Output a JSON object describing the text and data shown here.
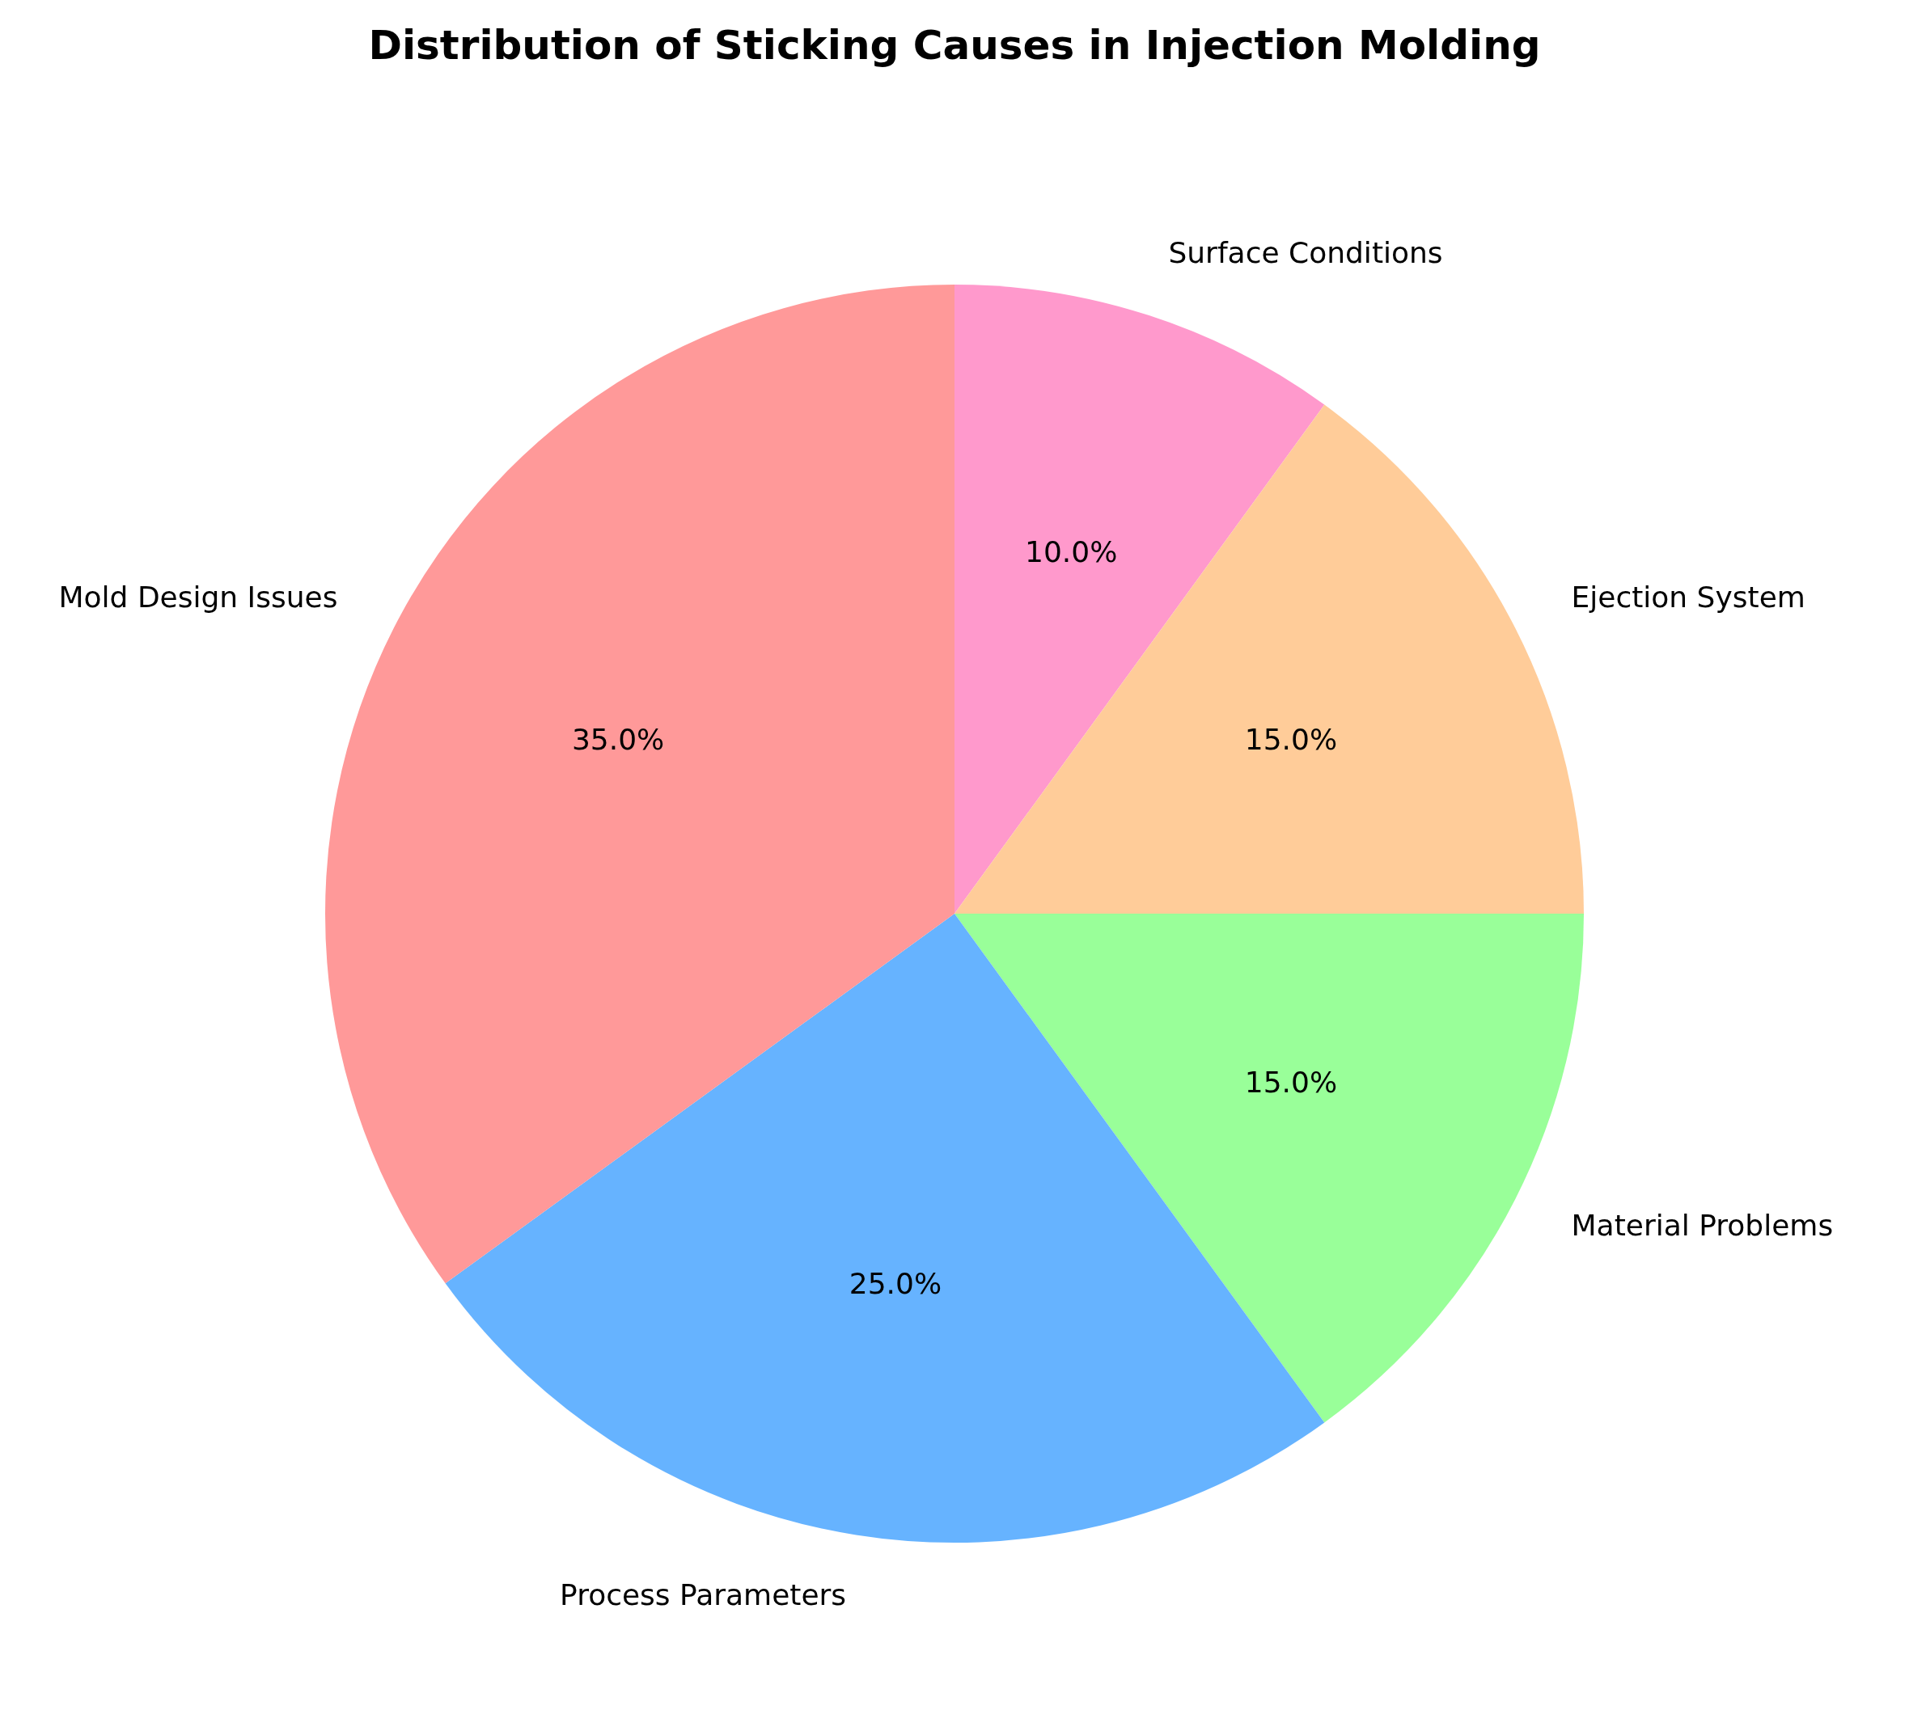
{
  "chart_data": {
    "type": "pie",
    "title": "Distribution of Sticking Causes in Injection Molding",
    "categories": [
      "Surface Conditions",
      "Ejection System",
      "Material Problems",
      "Process Parameters",
      "Mold Design Issues"
    ],
    "values": [
      10,
      15,
      15,
      25,
      35
    ],
    "colors": [
      "#ff99cc",
      "#ffcc99",
      "#99ff99",
      "#66b3ff",
      "#ff9999"
    ],
    "value_labels": [
      "10.0%",
      "15.0%",
      "15.0%",
      "25.0%",
      "35.0%"
    ],
    "legend": false
  }
}
